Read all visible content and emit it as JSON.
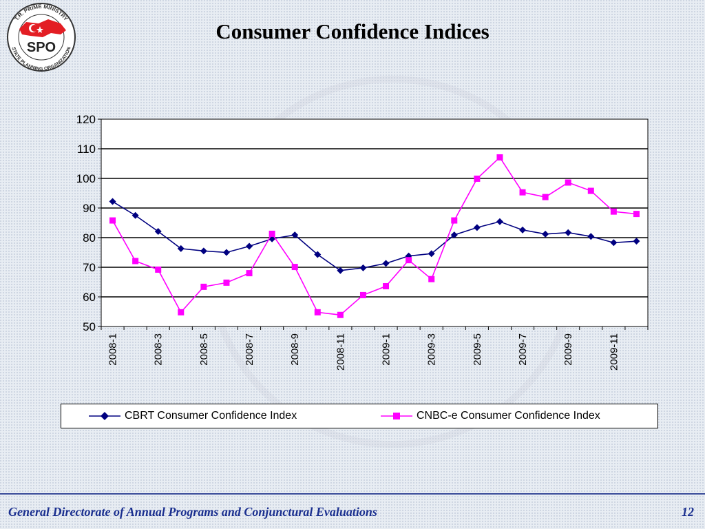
{
  "title": "Consumer Confidence Indices",
  "logo": {
    "top_text": "T.R. PRIME MINISTRY",
    "bottom_text": "STATE PLANNING ORGANIZATION",
    "abbr": "SPO"
  },
  "footer": {
    "text": "General Directorate of Annual Programs and Conjunctural Evaluations",
    "page": "12"
  },
  "colors": {
    "cbrt": "#000080",
    "cnbc": "#ff00ff",
    "footer": "#1a2f8f"
  },
  "chart_data": {
    "type": "line",
    "title": "",
    "xlabel": "",
    "ylabel": "",
    "ylim": [
      50,
      120
    ],
    "yticks": [
      50,
      60,
      70,
      80,
      90,
      100,
      110,
      120
    ],
    "grid": true,
    "legend": "bottom",
    "x": [
      "2008-1",
      "2008-2",
      "2008-3",
      "2008-4",
      "2008-5",
      "2008-6",
      "2008-7",
      "2008-8",
      "2008-9",
      "2008-10",
      "2008-11",
      "2008-12",
      "2009-1",
      "2009-2",
      "2009-3",
      "2009-4",
      "2009-5",
      "2009-6",
      "2009-7",
      "2009-8",
      "2009-9",
      "2009-10",
      "2009-11",
      "2009-12"
    ],
    "xtick_labels": [
      "2008-1",
      "2008-3",
      "2008-5",
      "2008-7",
      "2008-9",
      "2008-11",
      "2009-1",
      "2009-3",
      "2009-5",
      "2009-7",
      "2009-9",
      "2009-11"
    ],
    "series": [
      {
        "name": "CBRT Consumer Confidence Index",
        "marker": "diamond",
        "values": [
          92.2,
          87.5,
          82.1,
          76.3,
          75.5,
          75.0,
          77.1,
          79.6,
          80.9,
          74.3,
          68.9,
          69.8,
          71.3,
          73.8,
          74.6,
          80.9,
          83.4,
          85.4,
          82.6,
          81.2,
          81.7,
          80.4,
          78.3,
          78.8
        ]
      },
      {
        "name": "CNBC-e Consumer Confidence Index",
        "marker": "square",
        "values": [
          85.8,
          72.1,
          69.2,
          54.8,
          63.4,
          64.8,
          68.0,
          81.3,
          70.1,
          54.8,
          53.9,
          60.6,
          63.6,
          72.4,
          66.0,
          85.8,
          99.9,
          107.1,
          95.3,
          93.7,
          98.6,
          95.8,
          88.8,
          88.0
        ]
      }
    ]
  }
}
